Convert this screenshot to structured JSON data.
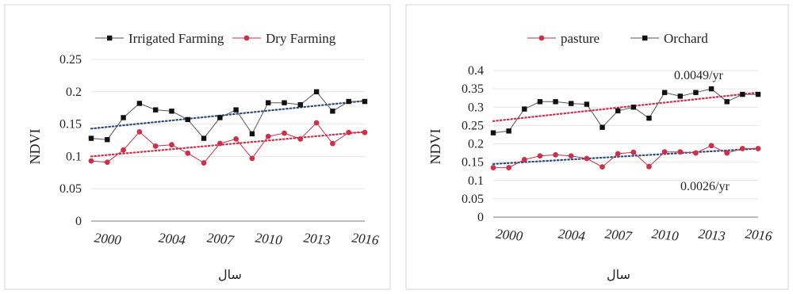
{
  "chart_data": [
    {
      "type": "line",
      "ylabel": "NDVI",
      "xlabel": "سال",
      "ylim": [
        0,
        0.25
      ],
      "yticks": [
        0,
        0.05,
        0.1,
        0.15,
        0.2,
        0.25
      ],
      "ytick_labels": [
        "0",
        "0.05",
        "0.1",
        "0.15",
        "0.2",
        "0.25"
      ],
      "xticks": [
        2000,
        2004,
        2007,
        2010,
        2013,
        2016
      ],
      "xlim": [
        1999,
        2016
      ],
      "legend_position": "top",
      "grid": true,
      "x": [
        1999,
        2000,
        2001,
        2002,
        2003,
        2004,
        2005,
        2006,
        2007,
        2008,
        2009,
        2010,
        2011,
        2012,
        2013,
        2014,
        2015,
        2016
      ],
      "series": [
        {
          "name": "Irrigated Farming",
          "color": "#111111",
          "marker": "square",
          "values": [
            0.128,
            0.126,
            0.16,
            0.182,
            0.172,
            0.17,
            0.157,
            0.128,
            0.16,
            0.172,
            0.135,
            0.183,
            0.183,
            0.18,
            0.2,
            0.17,
            0.185,
            0.185
          ],
          "trend": [
            0.143,
            0.186
          ],
          "trend_color": "#2c4a7a"
        },
        {
          "name": "Dry Farming",
          "color": "#c8324b",
          "marker": "circle",
          "values": [
            0.093,
            0.091,
            0.11,
            0.138,
            0.116,
            0.118,
            0.105,
            0.09,
            0.12,
            0.127,
            0.097,
            0.131,
            0.136,
            0.127,
            0.152,
            0.12,
            0.137,
            0.137
          ],
          "trend": [
            0.1,
            0.138
          ],
          "trend_color": "#c8324b"
        }
      ],
      "annotations": []
    },
    {
      "type": "line",
      "ylabel": "NDVI",
      "xlabel": "سال",
      "ylim": [
        0,
        0.4
      ],
      "yticks": [
        0,
        0.05,
        0.1,
        0.15,
        0.2,
        0.25,
        0.3,
        0.35,
        0.4
      ],
      "ytick_labels": [
        "0",
        "0.05",
        "0.1",
        "0.15",
        "0.2",
        "0.25",
        "0.3",
        "0.35",
        "0.4"
      ],
      "xticks": [
        2000,
        2004,
        2007,
        2010,
        2013,
        2016
      ],
      "xlim": [
        1999,
        2016
      ],
      "legend_position": "top",
      "grid": true,
      "x": [
        1999,
        2000,
        2001,
        2002,
        2003,
        2004,
        2005,
        2006,
        2007,
        2008,
        2009,
        2010,
        2011,
        2012,
        2013,
        2014,
        2015,
        2016
      ],
      "series": [
        {
          "name": "pasture",
          "color": "#c8324b",
          "marker": "circle",
          "values": [
            0.135,
            0.135,
            0.157,
            0.167,
            0.17,
            0.167,
            0.16,
            0.137,
            0.173,
            0.177,
            0.138,
            0.178,
            0.178,
            0.175,
            0.195,
            0.175,
            0.187,
            0.187
          ],
          "trend": [
            0.145,
            0.187
          ],
          "trend_color": "#2c4a7a"
        },
        {
          "name": "Orchard",
          "color": "#111111",
          "marker": "square",
          "values": [
            0.23,
            0.235,
            0.295,
            0.315,
            0.315,
            0.31,
            0.308,
            0.245,
            0.29,
            0.3,
            0.27,
            0.34,
            0.33,
            0.34,
            0.35,
            0.315,
            0.335,
            0.335
          ],
          "trend": [
            0.262,
            0.34
          ],
          "trend_color": "#c8324b"
        }
      ],
      "annotations": [
        "0.0049/yr",
        "0.0026/yr"
      ]
    }
  ]
}
